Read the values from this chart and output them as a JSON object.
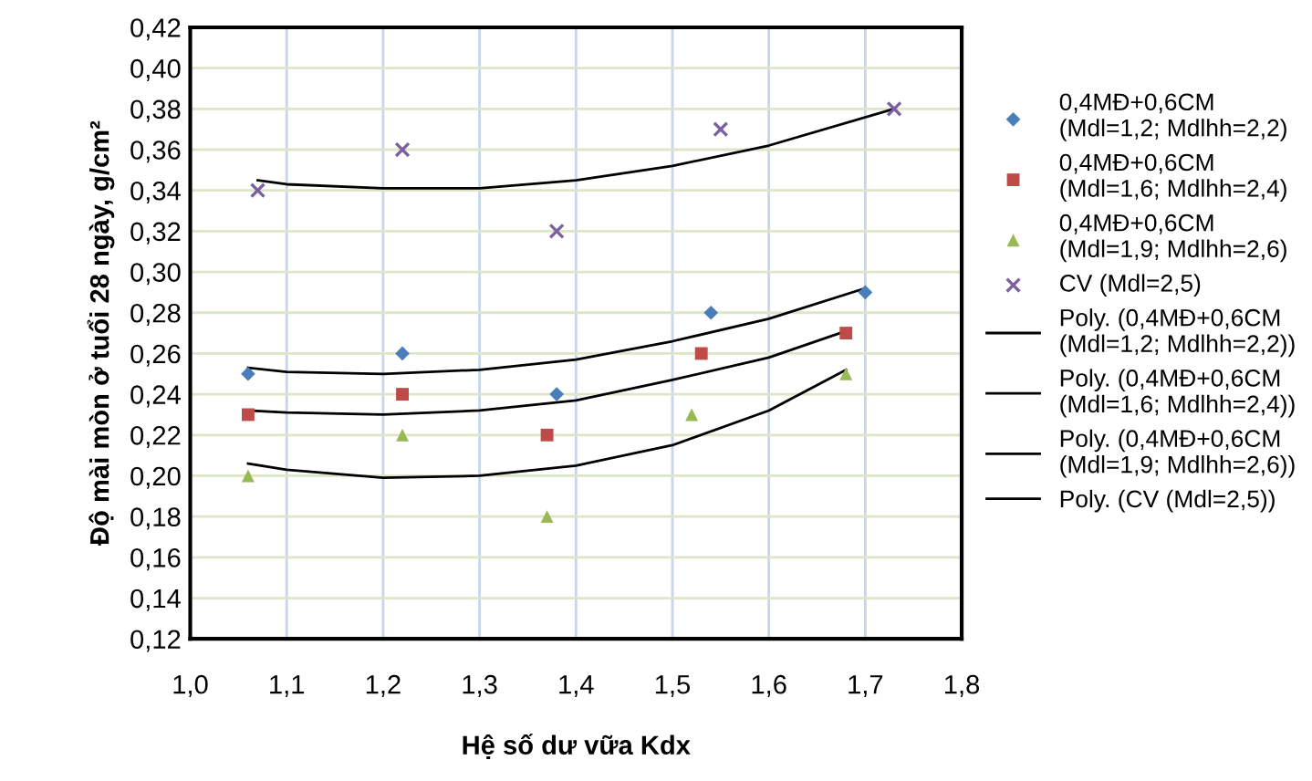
{
  "chart_data": {
    "type": "scatter",
    "xlabel": "Hệ số dư vữa Kdx",
    "ylabel": "Độ mài mòn ở tuổi 28 ngày, g/cm²",
    "xlim": [
      1.0,
      1.8
    ],
    "xticks": [
      {
        "value": 1.0,
        "label": "1,0"
      },
      {
        "value": 1.1,
        "label": "1,1"
      },
      {
        "value": 1.2,
        "label": "1,2"
      },
      {
        "value": 1.3,
        "label": "1,3"
      },
      {
        "value": 1.4,
        "label": "1,4"
      },
      {
        "value": 1.5,
        "label": "1,5"
      },
      {
        "value": 1.6,
        "label": "1,6"
      },
      {
        "value": 1.7,
        "label": "1,7"
      },
      {
        "value": 1.8,
        "label": "1,8"
      }
    ],
    "ylim": [
      0.12,
      0.42
    ],
    "yticks": [
      {
        "value": 0.12,
        "label": "0,12"
      },
      {
        "value": 0.14,
        "label": "0,14"
      },
      {
        "value": 0.16,
        "label": "0,16"
      },
      {
        "value": 0.18,
        "label": "0,18"
      },
      {
        "value": 0.2,
        "label": "0,20"
      },
      {
        "value": 0.22,
        "label": "0,22"
      },
      {
        "value": 0.24,
        "label": "0,24"
      },
      {
        "value": 0.26,
        "label": "0,26"
      },
      {
        "value": 0.28,
        "label": "0,28"
      },
      {
        "value": 0.3,
        "label": "0,30"
      },
      {
        "value": 0.32,
        "label": "0,32"
      },
      {
        "value": 0.34,
        "label": "0,34"
      },
      {
        "value": 0.36,
        "label": "0,36"
      },
      {
        "value": 0.38,
        "label": "0,38"
      },
      {
        "value": 0.4,
        "label": "0,40"
      },
      {
        "value": 0.42,
        "label": "0,42"
      }
    ],
    "grid": true,
    "legend": "right",
    "series": [
      {
        "name": "0,4MĐ+0,6CM\n(Mdl=1,2; Mdlhh=2,2)",
        "marker": "diamond",
        "color": "#4a7ebb",
        "x": [
          1.06,
          1.22,
          1.38,
          1.54,
          1.7
        ],
        "values": [
          0.25,
          0.26,
          0.24,
          0.28,
          0.29
        ]
      },
      {
        "name": "0,4MĐ+0,6CM\n(Mdl=1,6; Mdlhh=2,4)",
        "marker": "square",
        "color": "#be4b48",
        "x": [
          1.06,
          1.22,
          1.37,
          1.53,
          1.68
        ],
        "values": [
          0.23,
          0.24,
          0.22,
          0.26,
          0.27
        ]
      },
      {
        "name": "0,4MĐ+0,6CM\n(Mdl=1,9; Mdlhh=2,6)",
        "marker": "triangle",
        "color": "#98b954",
        "x": [
          1.06,
          1.22,
          1.37,
          1.52,
          1.68
        ],
        "values": [
          0.2,
          0.22,
          0.18,
          0.23,
          0.25
        ]
      },
      {
        "name": "CV (Mdl=2,5)",
        "marker": "cross",
        "color": "#7d60a0",
        "x": [
          1.07,
          1.22,
          1.38,
          1.55,
          1.73
        ],
        "values": [
          0.34,
          0.36,
          0.32,
          0.37,
          0.38
        ]
      },
      {
        "name": "Poly. (0,4MĐ+0,6CM\n(Mdl=1,2; Mdlhh=2,2))",
        "type": "line",
        "marker": "none",
        "color": "#000000",
        "x": [
          1.06,
          1.1,
          1.2,
          1.3,
          1.4,
          1.5,
          1.6,
          1.7
        ],
        "values": [
          0.253,
          0.251,
          0.25,
          0.252,
          0.257,
          0.266,
          0.277,
          0.292
        ]
      },
      {
        "name": "Poly. (0,4MĐ+0,6CM\n(Mdl=1,6; Mdlhh=2,4))",
        "type": "line",
        "marker": "none",
        "color": "#000000",
        "x": [
          1.06,
          1.1,
          1.2,
          1.3,
          1.4,
          1.5,
          1.6,
          1.68
        ],
        "values": [
          0.232,
          0.231,
          0.23,
          0.232,
          0.237,
          0.247,
          0.258,
          0.271
        ]
      },
      {
        "name": "Poly. (0,4MĐ+0,6CM\n(Mdl=1,9; Mdlhh=2,6))",
        "type": "line",
        "marker": "none",
        "color": "#000000",
        "x": [
          1.06,
          1.1,
          1.2,
          1.3,
          1.4,
          1.5,
          1.6,
          1.68
        ],
        "values": [
          0.206,
          0.203,
          0.199,
          0.2,
          0.205,
          0.215,
          0.232,
          0.252
        ]
      },
      {
        "name": "Poly. (CV (Mdl=2,5))",
        "type": "line",
        "marker": "none",
        "color": "#000000",
        "x": [
          1.07,
          1.1,
          1.2,
          1.3,
          1.4,
          1.5,
          1.6,
          1.73
        ],
        "values": [
          0.345,
          0.343,
          0.341,
          0.341,
          0.345,
          0.352,
          0.362,
          0.38
        ]
      }
    ]
  }
}
